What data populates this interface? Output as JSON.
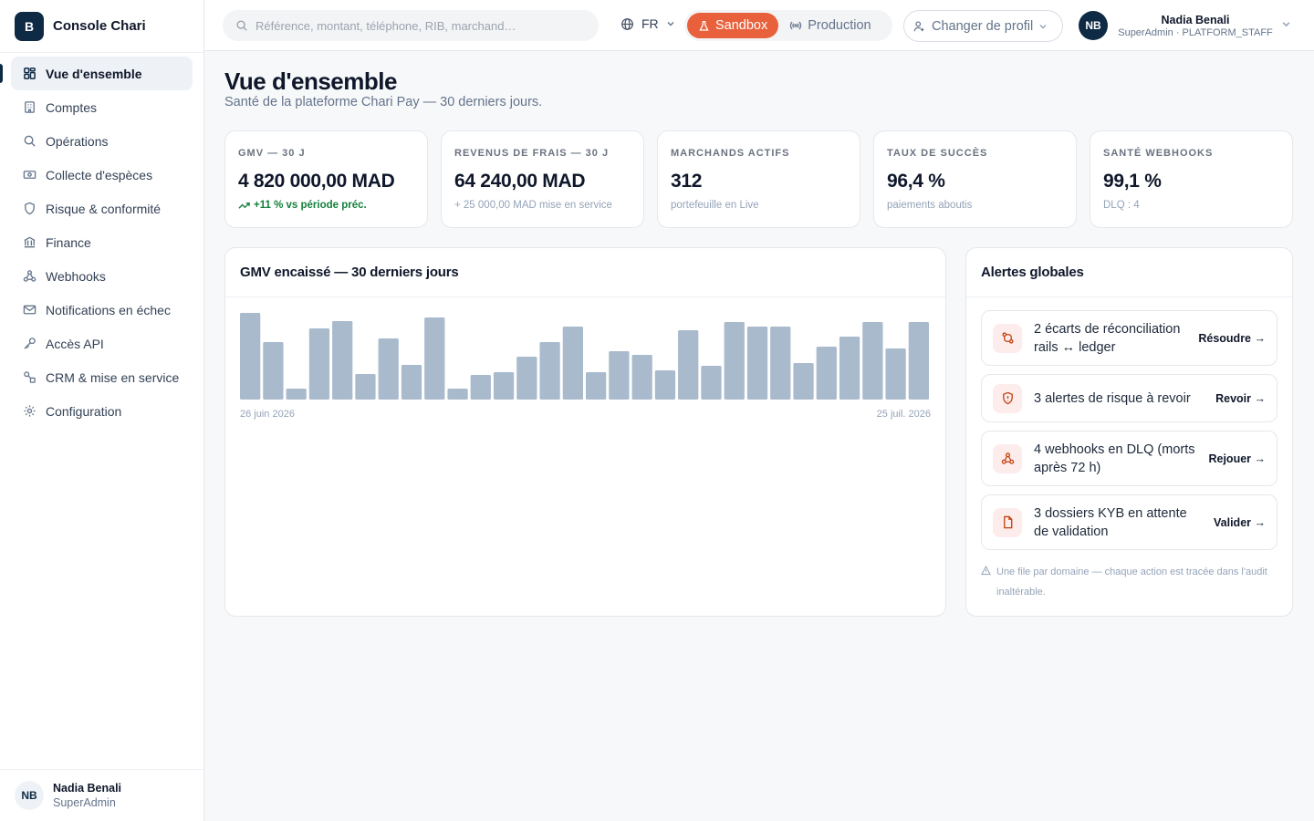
{
  "brand": {
    "logo_letter": "B",
    "name": "Console Chari"
  },
  "sidebar": {
    "items": [
      {
        "label": "Vue d'ensemble",
        "icon": "grid-icon",
        "active": true
      },
      {
        "label": "Comptes",
        "icon": "building-icon"
      },
      {
        "label": "Opérations",
        "icon": "search-icon"
      },
      {
        "label": "Collecte d'espèces",
        "icon": "banknote-icon"
      },
      {
        "label": "Risque & conformité",
        "icon": "shield-icon"
      },
      {
        "label": "Finance",
        "icon": "bank-icon"
      },
      {
        "label": "Webhooks",
        "icon": "webhook-icon"
      },
      {
        "label": "Notifications en échec",
        "icon": "mail-icon"
      },
      {
        "label": "Accès API",
        "icon": "key-icon"
      },
      {
        "label": "CRM & mise en service",
        "icon": "shapes-icon"
      },
      {
        "label": "Configuration",
        "icon": "gear-icon"
      }
    ],
    "footer": {
      "initials": "NB",
      "name": "Nadia Benali",
      "role": "SuperAdmin"
    }
  },
  "topbar": {
    "search_placeholder": "Référence, montant, téléphone, RIB, marchand…",
    "language": "FR",
    "env": {
      "sandbox": "Sandbox",
      "production": "Production",
      "active": "sandbox",
      "active_color": "#e8613c"
    },
    "profile_switch": "Changer de profil",
    "user": {
      "initials": "NB",
      "name": "Nadia Benali",
      "role": "SuperAdmin · PLATFORM_STAFF"
    }
  },
  "page": {
    "title": "Vue d'ensemble",
    "subtitle": "Santé de la plateforme Chari Pay — 30 derniers jours."
  },
  "kpis": [
    {
      "label": "GMV — 30 J",
      "value": "4 820 000,00 MAD",
      "foot": "+11 % vs période préc.",
      "trend": "up"
    },
    {
      "label": "REVENUS DE FRAIS — 30 J",
      "value": "64 240,00 MAD",
      "foot": "+ 25 000,00 MAD mise en service"
    },
    {
      "label": "MARCHANDS ACTIFS",
      "value": "312",
      "foot": "portefeuille en Live"
    },
    {
      "label": "TAUX DE SUCCÈS",
      "value": "96,4 %",
      "foot": "paiements aboutis"
    },
    {
      "label": "SANTÉ WEBHOOKS",
      "value": "99,1 %",
      "foot": "DLQ : 4"
    }
  ],
  "chart_card": {
    "title": "GMV encaissé — 30 derniers jours"
  },
  "chart_data": {
    "type": "bar",
    "title": "GMV encaissé — 30 derniers jours",
    "x_start_label": "26 juin 2026",
    "x_end_label": "25 juil. 2026",
    "values": [
      95,
      63,
      12,
      78,
      86,
      28,
      67,
      38,
      90,
      12,
      27,
      30,
      47,
      63,
      80,
      30,
      53,
      49,
      32,
      76,
      37,
      85,
      80,
      80,
      40,
      58,
      69,
      85,
      56,
      85
    ],
    "ylim": [
      0,
      100
    ],
    "bar_color": "#a9bacd",
    "grid": false,
    "legend": "none"
  },
  "alerts": {
    "title": "Alertes globales",
    "items": [
      {
        "text": "2 écarts de réconciliation rails ↔ ledger",
        "action": "Résoudre →",
        "icon": "reconcile-icon"
      },
      {
        "text": "3 alertes de risque à revoir",
        "action": "Revoir →",
        "icon": "shield-icon"
      },
      {
        "text": "4 webhooks en DLQ (morts après 72 h)",
        "action": "Rejouer →",
        "icon": "webhook-icon"
      },
      {
        "text": "3 dossiers KYB en attente de validation",
        "action": "Valider →",
        "icon": "document-icon"
      }
    ],
    "note": "Une file par domaine — chaque action est tracée dans l'audit inaltérable."
  }
}
